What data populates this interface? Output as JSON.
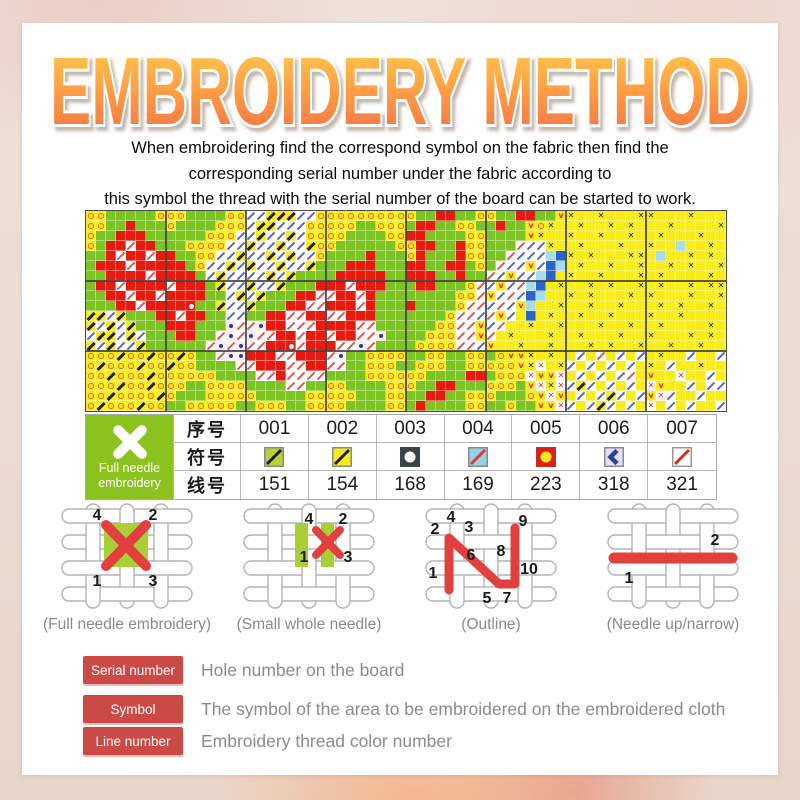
{
  "title": "EMBROIDERY METHOD",
  "intro_lines": [
    "When embroidering find the correspond symbol on the fabric then find the",
    "corresponding serial number under the fabric according to",
    "this symbol the thread with the serial number of the board can be started to work."
  ],
  "colors": {
    "title_gradient_top": "#ffd04f",
    "title_gradient_mid": "#ffa244",
    "title_gradient_bottom": "#f26b46",
    "pattern_green": "#7cc421",
    "pattern_yellow": "#f8ec1a",
    "pattern_red": "#e8190d",
    "badge_red": "#cb4a45",
    "corner_green": "#8cc21e",
    "caption_gray": "#8a8a8a"
  },
  "pattern": {
    "symbol_key": {
      "g": "green solid stitch",
      "o": "orange ring on yellow",
      "y": "black diagonal on yellow",
      "r": "red solid stitch",
      "w": "red diagonal on white",
      "b": "blue diagonal on white",
      "x": "black cross on yellow",
      "Y": "yellow solid",
      "c": "light blue solid",
      "B": "blue solid",
      "d": "blue dot on white",
      "v": "red v on yellow",
      "R": "red cross on white",
      "C": "white dot on red"
    },
    "rows": [
      "oogggggoooggggoobbyyybbooooooooooggrrggooggrrggvxYYxYYYxxYYYxYYYx",
      "ooggrgggoggggooobyybbboooooggooogrrggooggrggvoxYYxYYxYxYYYxYYYYx",
      "oggrrrggggggooobbybbybooooggggoorrggggooggggvxYYxYYxYYxYYxYYYxYY",
      "ogrrwrrgggoooobbybbybbyooggggggoorrggroogggwbbxYYxYYYxYYxYYcYYxY",
      "ggrwrrwrrggoobbybbybybboggggrgggorgggrooggwbbbcBxYxYYYxxYcYYxYxY",
      "grrrwrrrrrgobbybybbybbygggrrrgggrrggrrgogwbbvbBcYxYYxYYxYYxYxYYx",
      "ggrrrrwrrrrgbybbbbybygggg rrrrrggrrrggrggwbvbbcBYxYYxYYYxYxYYYYxY",
      "grrwrrrrwrrrgybbybbygggrrrwrrrgggrrgggowbvbwcBYxYYxYxYYxYxYYxYxx",
      "ggrrwrrwrrrrggbybygggrrwwrrwrggggggggoowvbwbBcYYxYxYYYxYxYYYxYYx",
      "gggrrwrrrrCggybbygggrrwwrrrwrgggrggggowwbwbvcYYxYYxYYxYYYxYxYYxY",
      "yybygggrrwrrggbbggrrwwrrwwrrrggggggg owwbwvbYBYxYYxYYxYYYxYYxYYYY",
      "ybybygggrrrgggdwwdrrwwwrrrrwwggggggoowwvbwYYxYYxYYYxYYxYYxYYYYxY",
      "byybybgggrrggwdwdwwrrwrrwrrwwdggggooowwvwYxYYYxYYxYYYxYYxYYYxYxY",
      "ybybbyggggggwdwdwwrrCwrrrwwdwggggoooowwbvYYxYYxYYYxYxYYxYYxYYxYY",
      "oooyooyooyoggwddrrrwwrrrwdggooooggooggoogovvxYxYYbYwYbYbYxYYbYYb",
      "oyoooyooyooggggwwrrrwwrrwwggooogg oooggooooovxRYxbYbYbYbYxYbYYxYY",
      "ooyoooyoooooogggg wwrwwwwggggooooooggggrrgoooRvvRYbYbYbwYvYYRYYbY",
      "oooyooyoooggooooggggwwggooggggoooggrrgggooogvRxRbybYbYbYRvYYbYbb",
      "ooyooooyogggooooogggggooooogggooggrrggooogggovRvYbYbybYbvRbYYbYY",
      "oyoooyooggoooooggoooggooooggggoogrggggooggoggvvRbYbybYbYRYbYbYYb"
    ]
  },
  "symbol_table": {
    "row_labels": {
      "serial": "序号",
      "symbol": "符号",
      "line": "线号"
    },
    "corner": {
      "line1": "Full needle",
      "line2": "embroidery"
    },
    "columns": [
      {
        "serial": "001",
        "line": "151",
        "sym": {
          "bg": "#b5d334",
          "mark": "diag",
          "color": "#1c1c1c",
          "border": "#8a8a8a"
        }
      },
      {
        "serial": "002",
        "line": "154",
        "sym": {
          "bg": "#f7ec1f",
          "mark": "diag",
          "color": "#1c1c1c",
          "border": "#8a8a8a"
        }
      },
      {
        "serial": "003",
        "line": "168",
        "sym": {
          "bg": "#3c4348",
          "mark": "circle",
          "color": "#ffffff",
          "border": "#3c4348"
        }
      },
      {
        "serial": "004",
        "line": "169",
        "sym": {
          "bg": "#92d4ea",
          "mark": "diag",
          "color": "#e03a30",
          "border": "#8a8a8a"
        }
      },
      {
        "serial": "005",
        "line": "223",
        "sym": {
          "bg": "#e8190d",
          "mark": "circle",
          "color": "#f7ec1f",
          "border": "#b3372f"
        }
      },
      {
        "serial": "006",
        "line": "318",
        "sym": {
          "bg": "#e6ddf1",
          "mark": "chevron",
          "color": "#2b3f9f",
          "border": "#8a8a8a"
        }
      },
      {
        "serial": "007",
        "line": "321",
        "sym": {
          "bg": "#ffffff",
          "mark": "diag",
          "color": "#d92b1f",
          "border": "#999999"
        }
      }
    ]
  },
  "stitch_diagrams": [
    {
      "type": "full",
      "caption": "(Full needle embroidery)",
      "numbers": [
        "4",
        "2",
        "1",
        "3"
      ]
    },
    {
      "type": "small",
      "caption": "(Small whole needle)",
      "numbers": [
        "4",
        "2",
        "1",
        "3"
      ]
    },
    {
      "type": "outline",
      "caption": "(Outline)",
      "numbers": [
        "2",
        "4",
        "3",
        "9",
        "6",
        "8",
        "1",
        "5",
        "7",
        "10"
      ]
    },
    {
      "type": "narrow",
      "caption": "(Needle up/narrow)",
      "numbers": [
        "1",
        "2"
      ]
    }
  ],
  "legend_rows": [
    {
      "badge": "Serial number",
      "text": "Hole number on the board"
    },
    {
      "badge": "Symbol",
      "text": "The symbol of the area to be embroidered on the embroidered cloth"
    },
    {
      "badge": "Line number",
      "text": "Embroidery thread color number"
    }
  ]
}
